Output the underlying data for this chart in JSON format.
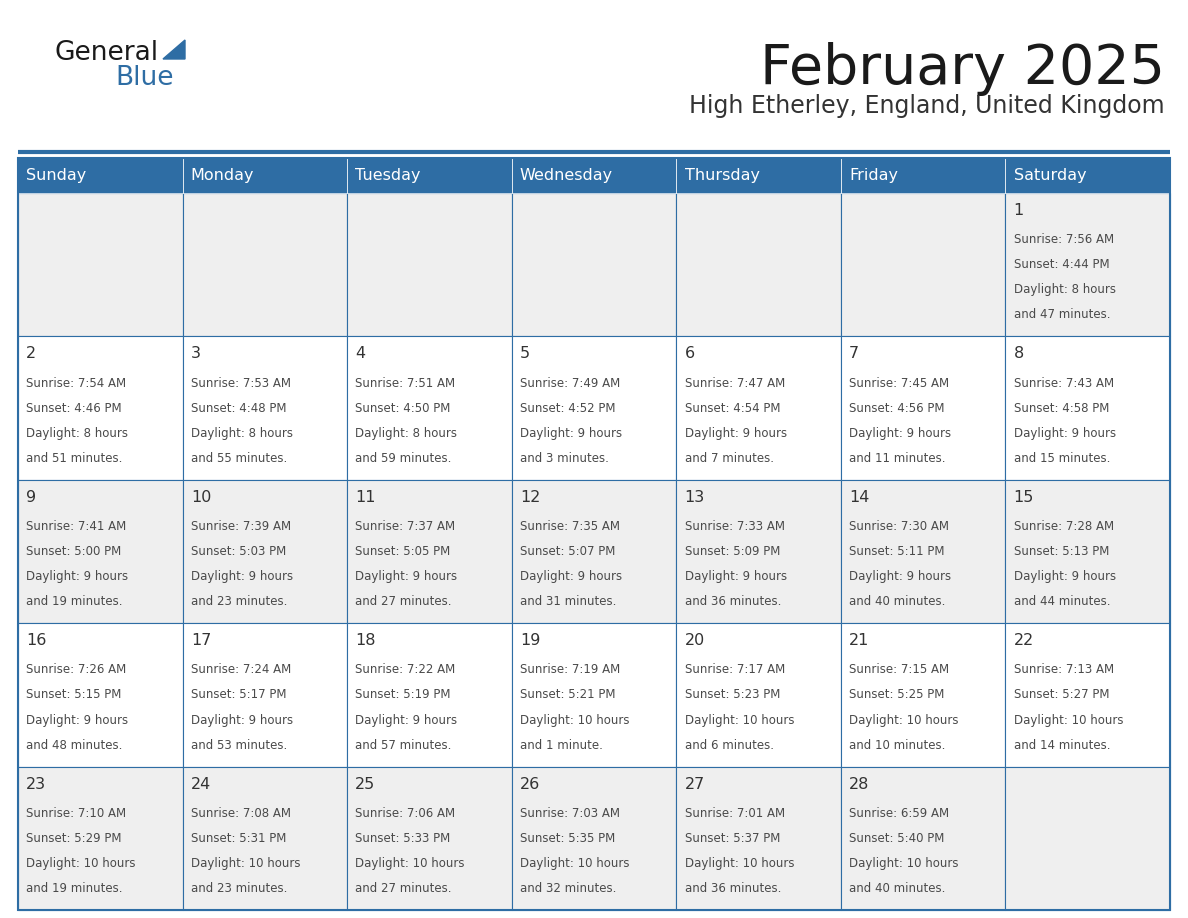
{
  "title": "February 2025",
  "subtitle": "High Etherley, England, United Kingdom",
  "days_of_week": [
    "Sunday",
    "Monday",
    "Tuesday",
    "Wednesday",
    "Thursday",
    "Friday",
    "Saturday"
  ],
  "header_bg": "#2E6DA4",
  "header_text": "#FFFFFF",
  "cell_bg_gray": "#EFEFEF",
  "cell_bg_white": "#FFFFFF",
  "border_color": "#2E6DA4",
  "text_color": "#4a4a4a",
  "day_num_color": "#333333",
  "title_color": "#1a1a1a",
  "subtitle_color": "#333333",
  "calendar": [
    [
      null,
      null,
      null,
      null,
      null,
      null,
      {
        "day": 1,
        "sunrise": "7:56 AM",
        "sunset": "4:44 PM",
        "daylight_line1": "Daylight: 8 hours",
        "daylight_line2": "and 47 minutes."
      }
    ],
    [
      {
        "day": 2,
        "sunrise": "7:54 AM",
        "sunset": "4:46 PM",
        "daylight_line1": "Daylight: 8 hours",
        "daylight_line2": "and 51 minutes."
      },
      {
        "day": 3,
        "sunrise": "7:53 AM",
        "sunset": "4:48 PM",
        "daylight_line1": "Daylight: 8 hours",
        "daylight_line2": "and 55 minutes."
      },
      {
        "day": 4,
        "sunrise": "7:51 AM",
        "sunset": "4:50 PM",
        "daylight_line1": "Daylight: 8 hours",
        "daylight_line2": "and 59 minutes."
      },
      {
        "day": 5,
        "sunrise": "7:49 AM",
        "sunset": "4:52 PM",
        "daylight_line1": "Daylight: 9 hours",
        "daylight_line2": "and 3 minutes."
      },
      {
        "day": 6,
        "sunrise": "7:47 AM",
        "sunset": "4:54 PM",
        "daylight_line1": "Daylight: 9 hours",
        "daylight_line2": "and 7 minutes."
      },
      {
        "day": 7,
        "sunrise": "7:45 AM",
        "sunset": "4:56 PM",
        "daylight_line1": "Daylight: 9 hours",
        "daylight_line2": "and 11 minutes."
      },
      {
        "day": 8,
        "sunrise": "7:43 AM",
        "sunset": "4:58 PM",
        "daylight_line1": "Daylight: 9 hours",
        "daylight_line2": "and 15 minutes."
      }
    ],
    [
      {
        "day": 9,
        "sunrise": "7:41 AM",
        "sunset": "5:00 PM",
        "daylight_line1": "Daylight: 9 hours",
        "daylight_line2": "and 19 minutes."
      },
      {
        "day": 10,
        "sunrise": "7:39 AM",
        "sunset": "5:03 PM",
        "daylight_line1": "Daylight: 9 hours",
        "daylight_line2": "and 23 minutes."
      },
      {
        "day": 11,
        "sunrise": "7:37 AM",
        "sunset": "5:05 PM",
        "daylight_line1": "Daylight: 9 hours",
        "daylight_line2": "and 27 minutes."
      },
      {
        "day": 12,
        "sunrise": "7:35 AM",
        "sunset": "5:07 PM",
        "daylight_line1": "Daylight: 9 hours",
        "daylight_line2": "and 31 minutes."
      },
      {
        "day": 13,
        "sunrise": "7:33 AM",
        "sunset": "5:09 PM",
        "daylight_line1": "Daylight: 9 hours",
        "daylight_line2": "and 36 minutes."
      },
      {
        "day": 14,
        "sunrise": "7:30 AM",
        "sunset": "5:11 PM",
        "daylight_line1": "Daylight: 9 hours",
        "daylight_line2": "and 40 minutes."
      },
      {
        "day": 15,
        "sunrise": "7:28 AM",
        "sunset": "5:13 PM",
        "daylight_line1": "Daylight: 9 hours",
        "daylight_line2": "and 44 minutes."
      }
    ],
    [
      {
        "day": 16,
        "sunrise": "7:26 AM",
        "sunset": "5:15 PM",
        "daylight_line1": "Daylight: 9 hours",
        "daylight_line2": "and 48 minutes."
      },
      {
        "day": 17,
        "sunrise": "7:24 AM",
        "sunset": "5:17 PM",
        "daylight_line1": "Daylight: 9 hours",
        "daylight_line2": "and 53 minutes."
      },
      {
        "day": 18,
        "sunrise": "7:22 AM",
        "sunset": "5:19 PM",
        "daylight_line1": "Daylight: 9 hours",
        "daylight_line2": "and 57 minutes."
      },
      {
        "day": 19,
        "sunrise": "7:19 AM",
        "sunset": "5:21 PM",
        "daylight_line1": "Daylight: 10 hours",
        "daylight_line2": "and 1 minute."
      },
      {
        "day": 20,
        "sunrise": "7:17 AM",
        "sunset": "5:23 PM",
        "daylight_line1": "Daylight: 10 hours",
        "daylight_line2": "and 6 minutes."
      },
      {
        "day": 21,
        "sunrise": "7:15 AM",
        "sunset": "5:25 PM",
        "daylight_line1": "Daylight: 10 hours",
        "daylight_line2": "and 10 minutes."
      },
      {
        "day": 22,
        "sunrise": "7:13 AM",
        "sunset": "5:27 PM",
        "daylight_line1": "Daylight: 10 hours",
        "daylight_line2": "and 14 minutes."
      }
    ],
    [
      {
        "day": 23,
        "sunrise": "7:10 AM",
        "sunset": "5:29 PM",
        "daylight_line1": "Daylight: 10 hours",
        "daylight_line2": "and 19 minutes."
      },
      {
        "day": 24,
        "sunrise": "7:08 AM",
        "sunset": "5:31 PM",
        "daylight_line1": "Daylight: 10 hours",
        "daylight_line2": "and 23 minutes."
      },
      {
        "day": 25,
        "sunrise": "7:06 AM",
        "sunset": "5:33 PM",
        "daylight_line1": "Daylight: 10 hours",
        "daylight_line2": "and 27 minutes."
      },
      {
        "day": 26,
        "sunrise": "7:03 AM",
        "sunset": "5:35 PM",
        "daylight_line1": "Daylight: 10 hours",
        "daylight_line2": "and 32 minutes."
      },
      {
        "day": 27,
        "sunrise": "7:01 AM",
        "sunset": "5:37 PM",
        "daylight_line1": "Daylight: 10 hours",
        "daylight_line2": "and 36 minutes."
      },
      {
        "day": 28,
        "sunrise": "6:59 AM",
        "sunset": "5:40 PM",
        "daylight_line1": "Daylight: 10 hours",
        "daylight_line2": "and 40 minutes."
      },
      null
    ]
  ],
  "logo_text1": "General",
  "logo_text2": "Blue",
  "logo_color1": "#1a1a1a",
  "logo_color2": "#2E6DA4",
  "logo_triangle_color": "#2E6DA4",
  "week_row_bg": [
    "#EFEFEF",
    "#FFFFFF",
    "#EFEFEF",
    "#FFFFFF",
    "#EFEFEF"
  ]
}
